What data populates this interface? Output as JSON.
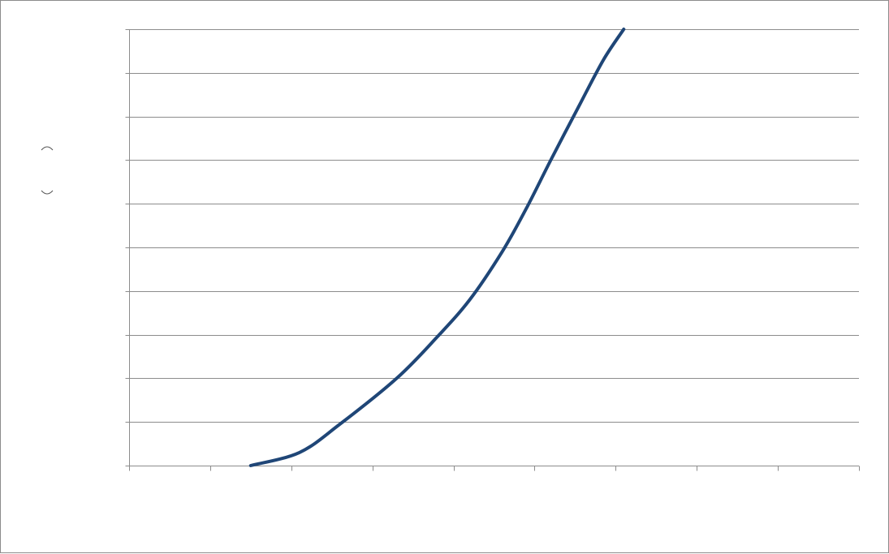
{
  "chart_data": {
    "type": "line",
    "title": "",
    "xlabel": "",
    "ylabel": "",
    "xlim": [
      0,
      9
    ],
    "ylim": [
      0,
      10
    ],
    "x_tick_count": 10,
    "y_tick_count": 11,
    "grid": true,
    "legend": "none",
    "series": [
      {
        "color": "#1f4677",
        "x": [
          1.5,
          2.1,
          2.6,
          3.3,
          3.8,
          4.2,
          4.6,
          4.9,
          5.2,
          5.55,
          5.85,
          6.1
        ],
        "y": [
          0.0,
          0.3,
          0.95,
          2.0,
          2.95,
          3.8,
          4.9,
          5.9,
          7.0,
          8.25,
          9.3,
          10.0
        ]
      }
    ]
  }
}
